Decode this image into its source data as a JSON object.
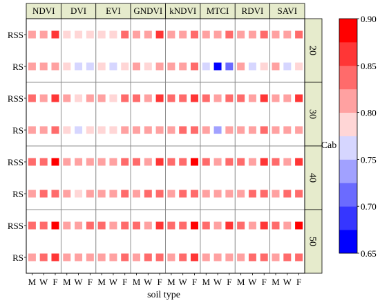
{
  "chart_data": {
    "type": "heatmap",
    "xlabel": "soil type",
    "colorbar_label": "Cab",
    "panel_columns": [
      "NDVI",
      "DVI",
      "EVI",
      "GNDVI",
      "kNDVI",
      "MTCI",
      "RDVI",
      "SAVI"
    ],
    "panel_rows": [
      "20",
      "30",
      "40",
      "50"
    ],
    "row_labels": [
      "RSS",
      "RS"
    ],
    "soil_types": [
      "M",
      "W",
      "F"
    ],
    "colorbar": {
      "min": 0.65,
      "max": 0.9,
      "ticks": [
        "0.65",
        "0.70",
        "0.75",
        "0.80",
        "0.85",
        "0.90"
      ],
      "colors": [
        "#0000ff",
        "#3636ff",
        "#6b6bff",
        "#a1a1ff",
        "#d6d6ff",
        "#ffd6d6",
        "#ffa1a1",
        "#ff6b6b",
        "#ff3636",
        "#ff0000"
      ]
    },
    "values": {
      "20": {
        "RSS": [
          [
            0.815,
            0.805,
            0.86
          ],
          [
            0.785,
            0.785,
            0.795
          ],
          [
            0.79,
            0.79,
            0.84
          ],
          [
            0.815,
            0.8,
            0.855
          ],
          [
            0.82,
            0.82,
            0.85
          ],
          [
            0.81,
            0.8,
            0.84
          ],
          [
            0.815,
            0.8,
            0.845
          ],
          [
            0.81,
            0.8,
            0.845
          ]
        ],
        "RS": [
          [
            0.82,
            0.81,
            0.82
          ],
          [
            0.775,
            0.765,
            0.765
          ],
          [
            0.79,
            0.77,
            0.79
          ],
          [
            0.8,
            0.79,
            0.81
          ],
          [
            0.815,
            0.81,
            0.835
          ],
          [
            0.765,
            0.66,
            0.71
          ],
          [
            0.81,
            0.77,
            0.79
          ],
          [
            0.8,
            0.77,
            0.79
          ]
        ]
      },
      "30": {
        "RSS": [
          [
            0.835,
            0.81,
            0.87
          ],
          [
            0.8,
            0.79,
            0.8
          ],
          [
            0.8,
            0.79,
            0.83
          ],
          [
            0.83,
            0.81,
            0.865
          ],
          [
            0.84,
            0.83,
            0.87
          ],
          [
            0.83,
            0.8,
            0.85
          ],
          [
            0.835,
            0.81,
            0.855
          ],
          [
            0.82,
            0.81,
            0.855
          ]
        ],
        "RS": [
          [
            0.8,
            0.815,
            0.83
          ],
          [
            0.78,
            0.765,
            0.775
          ],
          [
            0.79,
            0.79,
            0.8
          ],
          [
            0.805,
            0.8,
            0.815
          ],
          [
            0.815,
            0.835,
            0.85
          ],
          [
            0.8,
            0.745,
            0.8
          ],
          [
            0.815,
            0.805,
            0.835
          ],
          [
            0.8,
            0.815,
            0.825
          ]
        ]
      },
      "40": {
        "RSS": [
          [
            0.84,
            0.83,
            0.88
          ],
          [
            0.815,
            0.815,
            0.82
          ],
          [
            0.82,
            0.82,
            0.84
          ],
          [
            0.83,
            0.815,
            0.855
          ],
          [
            0.84,
            0.83,
            0.88
          ],
          [
            0.83,
            0.82,
            0.85
          ],
          [
            0.835,
            0.82,
            0.855
          ],
          [
            0.83,
            0.82,
            0.86
          ]
        ],
        "RS": [
          [
            0.8,
            0.84,
            0.845
          ],
          [
            0.82,
            0.775,
            0.81
          ],
          [
            0.81,
            0.815,
            0.83
          ],
          [
            0.82,
            0.83,
            0.83
          ],
          [
            0.81,
            0.845,
            0.85
          ],
          [
            0.81,
            0.81,
            0.815
          ],
          [
            0.82,
            0.83,
            0.845
          ],
          [
            0.815,
            0.83,
            0.83
          ]
        ]
      },
      "50": {
        "RSS": [
          [
            0.845,
            0.83,
            0.885
          ],
          [
            0.82,
            0.815,
            0.83
          ],
          [
            0.83,
            0.82,
            0.85
          ],
          [
            0.835,
            0.82,
            0.86
          ],
          [
            0.845,
            0.83,
            0.885
          ],
          [
            0.835,
            0.82,
            0.855
          ],
          [
            0.84,
            0.82,
            0.86
          ],
          [
            0.83,
            0.82,
            0.885
          ]
        ],
        "RS": [
          [
            0.8,
            0.84,
            0.855
          ],
          [
            0.82,
            0.8,
            0.81
          ],
          [
            0.815,
            0.82,
            0.83
          ],
          [
            0.82,
            0.83,
            0.83
          ],
          [
            0.81,
            0.845,
            0.865
          ],
          [
            0.815,
            0.815,
            0.82
          ],
          [
            0.825,
            0.83,
            0.85
          ],
          [
            0.82,
            0.83,
            0.835
          ]
        ]
      }
    }
  }
}
